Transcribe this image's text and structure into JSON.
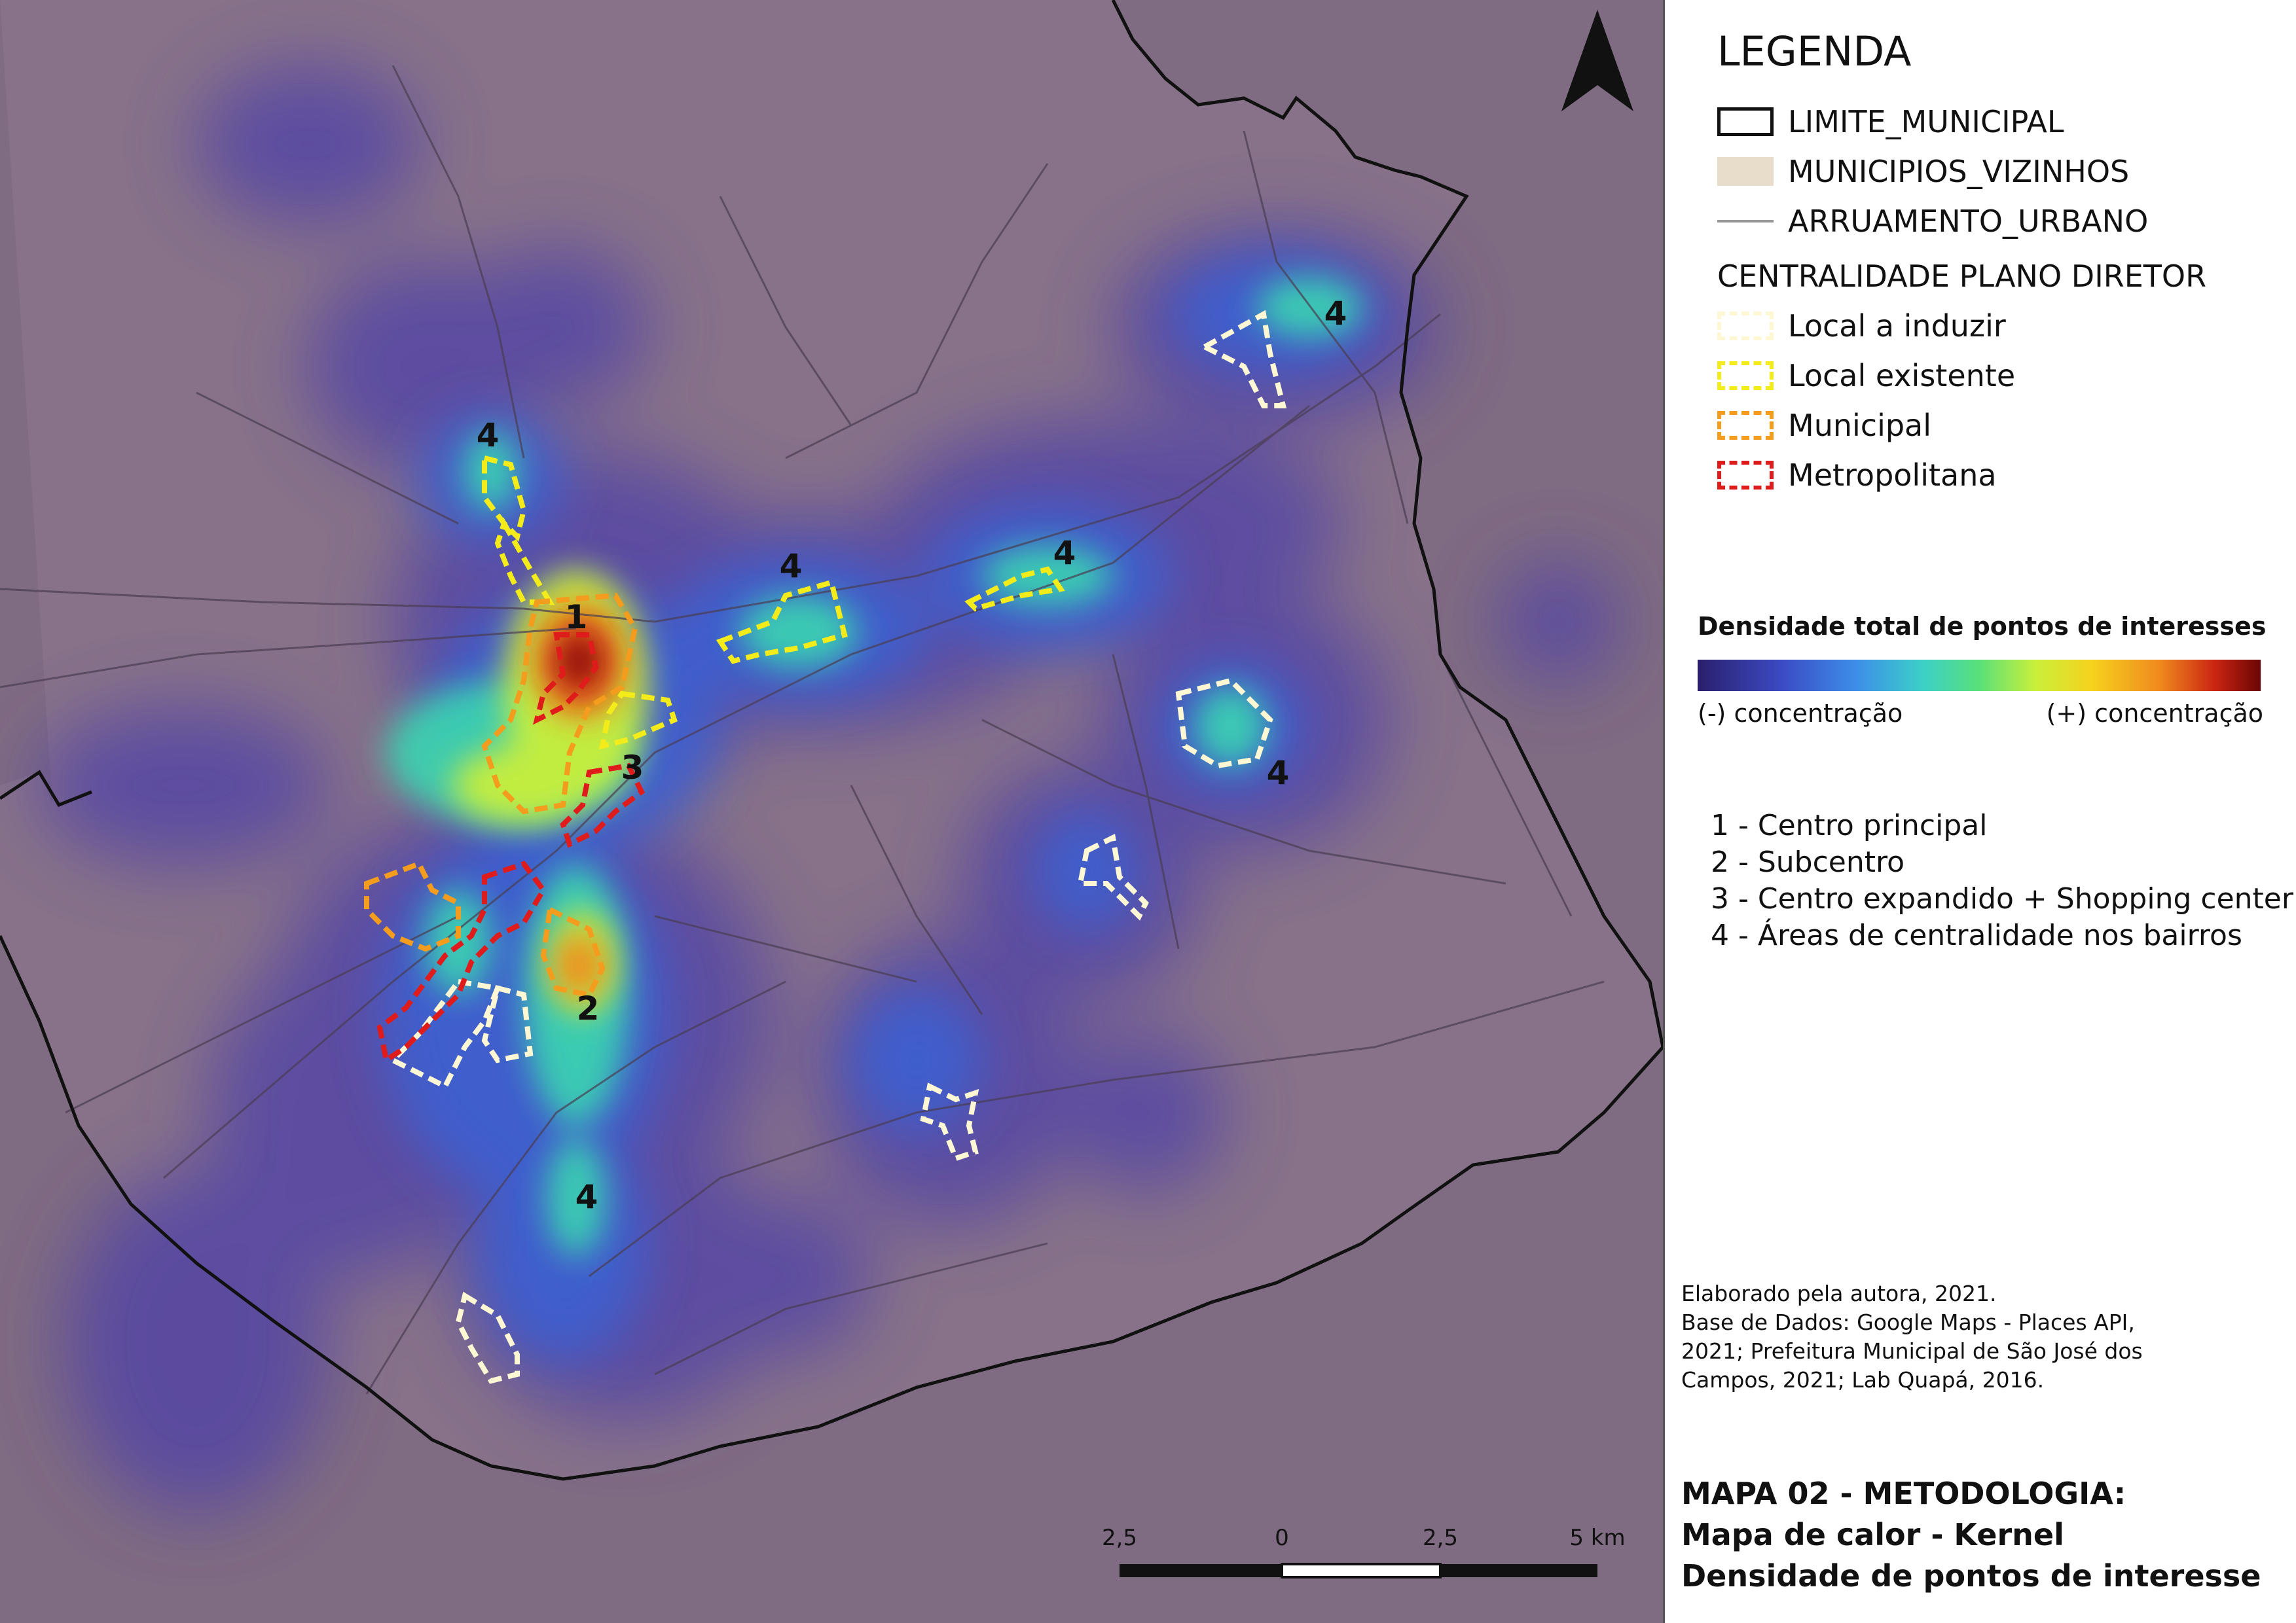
{
  "map": {
    "zone_labels": [
      {
        "text": "1"
      },
      {
        "text": "2"
      },
      {
        "text": "3"
      },
      {
        "text": "4"
      },
      {
        "text": "4"
      },
      {
        "text": "4"
      },
      {
        "text": "4"
      },
      {
        "text": "4"
      },
      {
        "text": "4"
      }
    ],
    "colors": {
      "background": "#7e6a80",
      "municipality_fill": "#857189",
      "boundary": "#111111",
      "streets": "#4a3d52",
      "local_a_induzir": "#fdf7d4",
      "local_existente": "#f4ec1a",
      "municipal": "#f39c1d",
      "metropolitana": "#e01b1b"
    },
    "north_arrow_icon": "north-arrow-icon"
  },
  "legend": {
    "title": "LEGENDA",
    "limite_municipal": "LIMITE_MUNICIPAL",
    "municipios_vizinhos": "MUNICIPIOS_VIZINHOS",
    "arruamento_urbano": "ARRUAMENTO_URBANO",
    "centralidade_title": "CENTRALIDADE PLANO DIRETOR",
    "local_a_induzir": "Local a induzir",
    "local_existente": "Local existente",
    "municipal": "Municipal",
    "metropolitana": "Metropolitana",
    "density_title": "Densidade total de pontos de interesses",
    "density_min": "(-) concentração",
    "density_max": "(+) concentração",
    "categories": [
      "1 - Centro principal",
      "2 - Subcentro",
      "3 - Centro expandido + Shopping center",
      "4 - Áreas de centralidade nos bairros"
    ],
    "credits": [
      "Elaborado pela autora, 2021.",
      "Base de Dados: Google Maps - Places API,",
      "2021; Prefeitura Municipal de São José dos",
      "Campos, 2021; Lab Quapá, 2016."
    ],
    "map_title": [
      "MAPA 02 - METODOLOGIA:",
      "Mapa de calor - Kernel",
      "Densidade de pontos de interesse"
    ]
  },
  "scale_bar": {
    "labels": [
      "2,5",
      "0",
      "2,5",
      "5 km"
    ]
  }
}
